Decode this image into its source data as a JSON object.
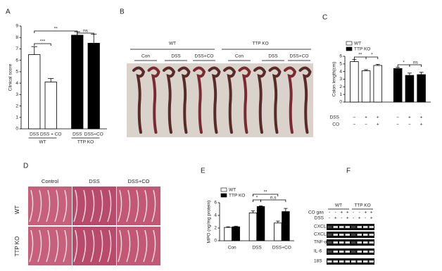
{
  "panel_labels": [
    "A",
    "B",
    "C",
    "D",
    "E",
    "F"
  ],
  "chart_data": [
    {
      "type": "bar",
      "ylabel": "Clinical score",
      "ylim": [
        0,
        9
      ],
      "yticks": [
        0,
        1,
        2,
        3,
        4,
        5,
        6,
        7,
        8,
        9
      ],
      "groups": [
        {
          "name": "WT",
          "color": "#ffffff",
          "categories": [
            "DSS",
            "DSS + CO"
          ],
          "values": [
            6.5,
            4.1
          ],
          "errors": [
            0.7,
            0.3
          ]
        },
        {
          "name": "TTP KO",
          "color": "#000000",
          "categories": [
            "DSS",
            "DSS+CO"
          ],
          "values": [
            8.2,
            7.5
          ],
          "errors": [
            0.3,
            0.8
          ]
        }
      ],
      "annotations": [
        "**",
        "ns",
        "***"
      ]
    },
    {
      "type": "bar",
      "ylabel": "Colon length(cm)",
      "ylim": [
        0,
        6
      ],
      "yticks": [
        0,
        1,
        2,
        3,
        4,
        5,
        6
      ],
      "legend": "top-left",
      "groups": [
        {
          "name": "WT",
          "color": "#ffffff",
          "values": [
            5.3,
            4.1,
            4.8
          ],
          "errors": [
            0.3,
            0.15,
            0.15
          ]
        },
        {
          "name": "TTP KO",
          "color": "#000000",
          "values": [
            4.4,
            3.5,
            3.6
          ],
          "errors": [
            0.15,
            0.3,
            0.3
          ]
        }
      ],
      "conditions": [
        {
          "name": "DSS",
          "signs": [
            "−",
            "+",
            "+",
            "−",
            "+",
            "+"
          ]
        },
        {
          "name": "CO",
          "signs": [
            "−",
            "−",
            "+",
            "−",
            "−",
            "+"
          ]
        }
      ],
      "annotations": [
        "**",
        "*",
        "*",
        "ns"
      ]
    },
    {
      "type": "bar",
      "ylabel": "MPO (ng/mg protein)",
      "ylim": [
        0,
        6
      ],
      "yticks": [
        0,
        2,
        4,
        6
      ],
      "legend": "top-left",
      "categories": [
        "Con",
        "DSS",
        "DSS+CO"
      ],
      "series": [
        {
          "name": "WT",
          "color": "#ffffff",
          "values": [
            2.1,
            4.4,
            2.8
          ],
          "errors": [
            0.1,
            0.3,
            0.3
          ]
        },
        {
          "name": "TTP KO",
          "color": "#000000",
          "values": [
            2.2,
            5.4,
            4.6
          ],
          "errors": [
            0.1,
            0.1,
            0.5
          ]
        }
      ],
      "annotations": [
        "*",
        "**",
        "n.s"
      ]
    }
  ],
  "colon_photo": {
    "groups": [
      "WT",
      "TTP KO"
    ],
    "conditions": [
      "Con",
      "DSS",
      "DSS+CO",
      "Con",
      "DSS",
      "DSS+CO"
    ]
  },
  "histology": {
    "columns": [
      "Control",
      "DSS",
      "DSS+CO"
    ],
    "rows": [
      "WT",
      "TTP KO"
    ]
  },
  "gel": {
    "groups": [
      "WT",
      "TTP KO"
    ],
    "treatments": [
      {
        "name": "CO gas",
        "signs": [
          "-",
          "-",
          "+",
          "+",
          "-",
          "-",
          "+",
          "+"
        ]
      },
      {
        "name": "DSS",
        "signs": [
          "-",
          "+",
          "-",
          "+",
          "-",
          "+",
          "-",
          "+"
        ]
      }
    ],
    "genes": [
      "CXCL1",
      "CXCL2",
      "TNF-α",
      "IL-6",
      "18S"
    ]
  }
}
